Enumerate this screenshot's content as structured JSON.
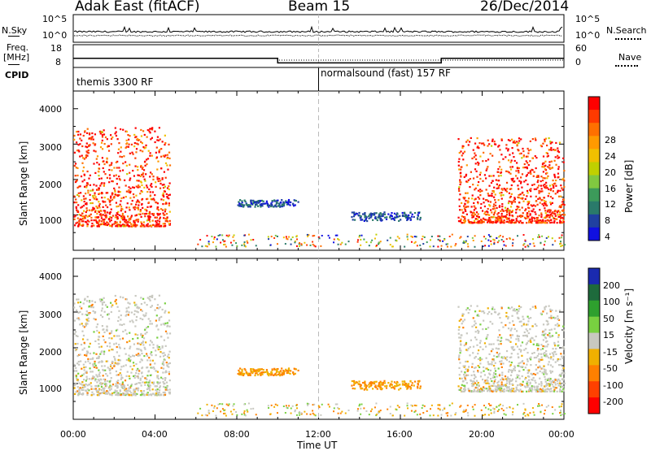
{
  "header": {
    "radar": "Adak East (fitACF)",
    "beam": "Beam 15",
    "date": "26/Dec/2014"
  },
  "side_labels": {
    "nsky": "N.Sky",
    "freq_line1": "Freq.",
    "freq_line2": "[MHz]",
    "cpid": "CPID",
    "nsearch": "N.Search",
    "nave": "Nave"
  },
  "top_axis_ticks": {
    "n_left": [
      "10^5",
      "10^0"
    ],
    "n_right": [
      "10^5",
      "10^0"
    ],
    "freq_left": [
      "18",
      "8"
    ],
    "nave_right": [
      "60",
      "0"
    ]
  },
  "cpid_labels": [
    {
      "text": "themis 3300 RF",
      "start_hour": 0
    },
    {
      "text": "normalsound (fast) 157 RF",
      "start_hour": 12
    }
  ],
  "xaxis": {
    "label": "Time UT",
    "ticks": [
      "00:00",
      "04:00",
      "08:00",
      "12:00",
      "16:00",
      "20:00",
      "00:00"
    ]
  },
  "power_panel": {
    "ylabel": "Slant Range [km]",
    "yticks": [
      "4000",
      "3000",
      "2000",
      "1000"
    ],
    "colorbar_label": "Power [dB]",
    "colorbar_ticks": [
      "28",
      "24",
      "20",
      "16",
      "12",
      "8",
      "4"
    ],
    "colors": [
      "#ff0000",
      "#ff3a00",
      "#ff7000",
      "#ff9a00",
      "#f0c000",
      "#c0d000",
      "#80c840",
      "#3c9a5a",
      "#2a7a6a",
      "#2040a0",
      "#1010e0"
    ]
  },
  "velocity_panel": {
    "ylabel": "Slant Range [km]",
    "yticks": [
      "4000",
      "3000",
      "2000",
      "1000"
    ],
    "colorbar_label": "Velocity [m s⁻¹]",
    "colorbar_ticks": [
      "200",
      "100",
      "50",
      "15",
      "-15",
      "-50",
      "-100",
      "-200"
    ],
    "colors": [
      "#1a2ab0",
      "#1e6a3c",
      "#2ea02e",
      "#78d040",
      "#c8c8c0",
      "#f0b000",
      "#ff8000",
      "#ff4000",
      "#ff0000"
    ]
  },
  "chart_data": {
    "type": "heatmap",
    "x_range_hours": [
      0,
      24
    ],
    "y_range_km": [
      0,
      4500
    ],
    "dashed_marker_hour": 12,
    "freq_mhz_segments": [
      {
        "start": 0,
        "end": 10,
        "value": 12
      },
      {
        "start": 10,
        "end": 18,
        "value": 10
      },
      {
        "start": 18,
        "end": 24,
        "value": 12
      }
    ],
    "nave_segments": [
      {
        "start": 0,
        "end": 10,
        "value": 20
      },
      {
        "start": 10,
        "end": 24,
        "value": 15
      }
    ],
    "echo_regions": [
      {
        "t0": 0.0,
        "t1": 4.7,
        "r0": 700,
        "r1": 3500,
        "kind": "ground"
      },
      {
        "t0": 8.0,
        "t1": 11.0,
        "r0": 1250,
        "r1": 1450,
        "kind": "ionospheric"
      },
      {
        "t0": 13.5,
        "t1": 17.0,
        "r0": 850,
        "r1": 1100,
        "kind": "ionospheric"
      },
      {
        "t0": 18.8,
        "t1": 24.0,
        "r0": 800,
        "r1": 3200,
        "kind": "ground"
      }
    ]
  }
}
